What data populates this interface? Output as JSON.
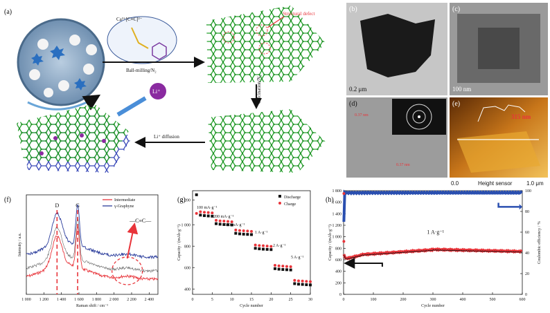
{
  "panel_a": {
    "label": "(a)",
    "formula": "Ca²⁺[C≡C]²⁻",
    "ball_milling": "Ball-milling/N₂",
    "structural_defect": "Structural defect",
    "calcination": "Calcination/N₂",
    "li_diffusion": "Li⁺ diffusion",
    "li_ion": "Li⁺"
  },
  "panel_b": {
    "label": "(b)",
    "scale": "0.2 μm"
  },
  "panel_c": {
    "label": "(c)",
    "scale": "100 nm"
  },
  "panel_d": {
    "label": "(d)",
    "d1": "0.37 nm",
    "d2": "0.37 nm"
  },
  "panel_e": {
    "label": "(e)",
    "height": "315 nm",
    "x0": "0.0",
    "x1": "1.0 μm",
    "sensor": "Height sensor"
  },
  "colors": {
    "intermediate": "#e8343a",
    "graphyne": "#2b3d9c",
    "green": "#2aa02a",
    "blue": "#2a4fb0"
  },
  "chart_data": [
    {
      "type": "line",
      "panel_label": "(f)",
      "xlabel": "Raman shift / cm⁻¹",
      "ylabel": "Intensity / a.u.",
      "xticks": [
        "1 000",
        "1 200",
        "1 400",
        "1 600",
        "1 800",
        "2 000",
        "2 200",
        "2 400"
      ],
      "xlim": [
        1000,
        2500
      ],
      "peak_labels": [
        "D",
        "G"
      ],
      "annotation": "—C≡C—",
      "series": [
        {
          "name": "Intermediate"
        },
        {
          "name": "γ-Graphyne"
        }
      ]
    },
    {
      "type": "scatter",
      "panel_label": "(g)",
      "xlabel": "Cycle number",
      "ylabel": "Capacity / (mAh·g⁻¹)",
      "xticks": [
        "0",
        "5",
        "10",
        "15",
        "20",
        "25",
        "30"
      ],
      "yticks": [
        "400",
        "600",
        "800",
        "1 000",
        "2 200"
      ],
      "rate_labels": [
        "100 mA·g⁻¹",
        "200 mA·g⁻¹",
        "500 mA·g⁻¹",
        "1 A·g⁻¹",
        "2 A·g⁻¹",
        "5 A·g⁻¹"
      ],
      "series": [
        {
          "name": "Discharge",
          "values": [
            2280,
            1090,
            1085,
            1082,
            1080,
            1010,
            1005,
            1002,
            1000,
            998,
            920,
            915,
            912,
            910,
            908,
            780,
            775,
            772,
            770,
            768,
            590,
            585,
            582,
            580,
            578,
            450,
            445,
            443,
            440,
            438
          ]
        },
        {
          "name": "Charge",
          "values": [
            1080,
            1095,
            1090,
            1088,
            1085,
            1015,
            1010,
            1008,
            1005,
            1002,
            925,
            920,
            918,
            915,
            912,
            785,
            780,
            778,
            775,
            772,
            595,
            590,
            588,
            585,
            582,
            455,
            450,
            448,
            445,
            443
          ]
        }
      ]
    },
    {
      "type": "scatter",
      "panel_label": "(h)",
      "xlabel": "Cycle number",
      "ylabel": "Capacity / (mAh·g⁻¹)",
      "y2label": "Coulombic efficiency / %",
      "xticks": [
        "0",
        "100",
        "200",
        "300",
        "400",
        "500",
        "600"
      ],
      "yticks": [
        "0",
        "200",
        "400",
        "600",
        "800",
        "1 000",
        "1 200",
        "1 400",
        "1 600",
        "1 800"
      ],
      "y2ticks": [
        "0",
        "20",
        "40",
        "60",
        "80",
        "100"
      ],
      "rate": "1 A·g⁻¹",
      "xlim": [
        0,
        600
      ],
      "ylim": [
        0,
        1800
      ],
      "y2lim": [
        0,
        100
      ]
    }
  ]
}
